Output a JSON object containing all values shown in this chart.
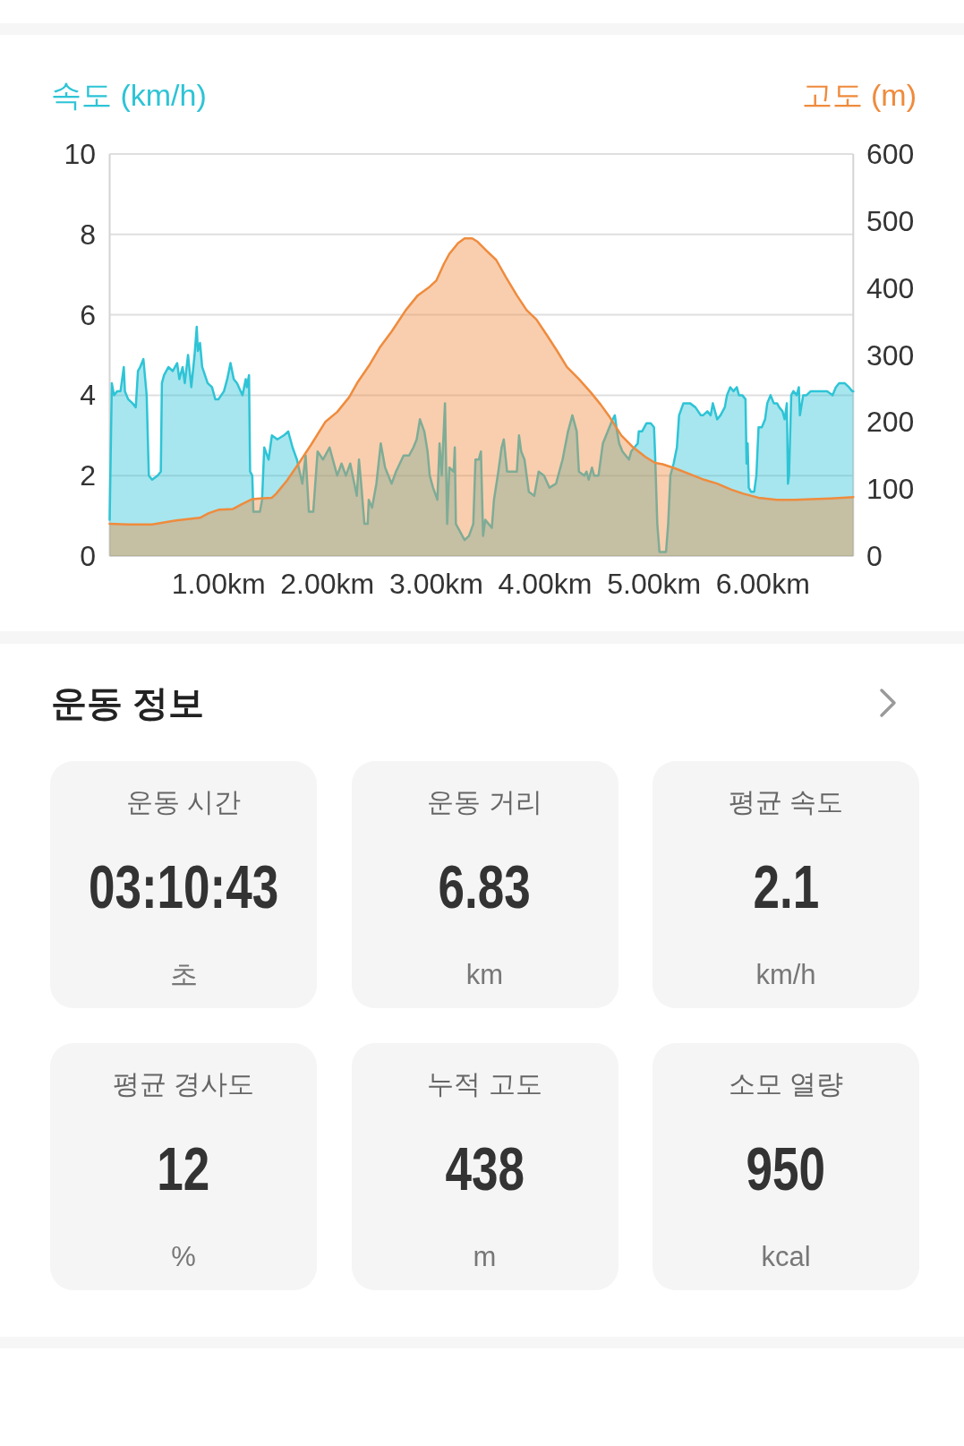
{
  "chart_data": [
    {
      "type": "area",
      "ylabel": "속도 (km/h)",
      "y2label": "고도 (m)",
      "xlim": [
        0,
        6.83
      ],
      "xticks": [
        {
          "value": 1,
          "label": "1.00km"
        },
        {
          "value": 2,
          "label": "2.00km"
        },
        {
          "value": 3,
          "label": "3.00km"
        },
        {
          "value": 4,
          "label": "4.00km"
        },
        {
          "value": 5,
          "label": "5.00km"
        },
        {
          "value": 6,
          "label": "6.00km"
        }
      ],
      "ylim": [
        0,
        10
      ],
      "yticks": [
        0,
        2,
        4,
        6,
        8,
        10
      ],
      "y2lim": [
        0,
        600
      ],
      "y2ticks": [
        0,
        100,
        200,
        300,
        400,
        500,
        600
      ],
      "grid": "y",
      "series": [
        {
          "color": "#2ec4d6",
          "x": [
            0,
            0.02,
            0.04,
            0.07,
            0.1,
            0.12,
            0.13,
            0.14,
            0.17,
            0.21,
            0.24,
            0.26,
            0.28,
            0.31,
            0.34,
            0.36,
            0.39,
            0.44,
            0.47,
            0.48,
            0.5,
            0.54,
            0.58,
            0.62,
            0.64,
            0.67,
            0.69,
            0.72,
            0.75,
            0.78,
            0.8,
            0.81,
            0.83,
            0.85,
            0.9,
            0.94,
            0.97,
            1.0,
            1.05,
            1.08,
            1.11,
            1.14,
            1.17,
            1.22,
            1.25,
            1.26,
            1.28,
            1.29,
            1.31,
            1.32,
            1.38,
            1.4,
            1.42,
            1.46,
            1.49,
            1.54,
            1.6,
            1.64,
            1.68,
            1.72,
            1.77,
            1.8,
            1.83,
            1.87,
            1.91,
            1.96,
            2.02,
            2.09,
            2.13,
            2.17,
            2.21,
            2.27,
            2.29,
            2.31,
            2.34,
            2.37,
            2.38,
            2.41,
            2.45,
            2.49,
            2.53,
            2.59,
            2.63,
            2.7,
            2.75,
            2.79,
            2.82,
            2.85,
            2.89,
            2.92,
            2.94,
            2.97,
            3.01,
            3.03,
            3.05,
            3.08,
            3.1,
            3.12,
            3.16,
            3.17,
            3.18,
            3.22,
            3.26,
            3.3,
            3.34,
            3.36,
            3.39,
            3.41,
            3.43,
            3.45,
            3.51,
            3.53,
            3.57,
            3.6,
            3.62,
            3.65,
            3.7,
            3.74,
            3.76,
            3.78,
            3.81,
            3.85,
            3.9,
            3.94,
            3.99,
            4.04,
            4.1,
            4.16,
            4.21,
            4.25,
            4.29,
            4.31,
            4.36,
            4.38,
            4.4,
            4.43,
            4.45,
            4.49,
            4.53,
            4.59,
            4.62,
            4.64,
            4.66,
            4.68,
            4.71,
            4.74,
            4.77,
            4.79,
            4.82,
            4.85,
            4.86,
            4.89,
            4.91,
            4.93,
            4.97,
            5.0,
            5.01,
            5.03,
            5.05,
            5.11,
            5.13,
            5.15,
            5.18,
            5.21,
            5.23,
            5.27,
            5.3,
            5.33,
            5.38,
            5.43,
            5.45,
            5.49,
            5.52,
            5.54,
            5.58,
            5.61,
            5.65,
            5.67,
            5.7,
            5.73,
            5.76,
            5.78,
            5.81,
            5.84,
            5.85,
            5.86,
            5.87,
            5.89,
            5.92,
            5.94,
            5.96,
            5.99,
            6.02,
            6.04,
            6.07,
            6.1,
            6.13,
            6.15,
            6.18,
            6.2,
            6.22,
            6.23,
            6.24,
            6.26,
            6.28,
            6.31,
            6.33,
            6.34,
            6.37,
            6.4,
            6.44,
            6.5,
            6.54,
            6.59,
            6.64,
            6.67,
            6.7,
            6.75,
            6.79,
            6.82,
            6.83
          ],
          "values": [
            0.9,
            4.3,
            4.0,
            4.1,
            4.1,
            4.5,
            4.7,
            4.1,
            3.9,
            3.8,
            3.7,
            4.6,
            4.7,
            4.9,
            4.0,
            2.0,
            1.9,
            2.0,
            2.1,
            4.3,
            4.5,
            4.7,
            4.6,
            4.8,
            4.4,
            4.7,
            4.3,
            5.0,
            4.2,
            5.0,
            5.7,
            5.1,
            5.3,
            4.7,
            4.3,
            4.2,
            3.9,
            3.9,
            4.1,
            4.4,
            4.8,
            4.4,
            4.3,
            4.0,
            4.4,
            4.2,
            4.5,
            2.1,
            2.0,
            1.1,
            1.1,
            1.4,
            2.7,
            2.4,
            3.0,
            2.9,
            3.0,
            3.1,
            2.7,
            2.4,
            1.8,
            2.5,
            1.1,
            1.1,
            2.6,
            2.4,
            2.7,
            2.0,
            2.3,
            2.0,
            2.3,
            1.5,
            2.4,
            1.8,
            0.8,
            0.8,
            1.4,
            1.2,
            1.8,
            2.8,
            2.2,
            1.8,
            2.1,
            2.5,
            2.5,
            2.7,
            2.9,
            3.4,
            3.1,
            2.6,
            2.0,
            1.7,
            1.4,
            2.8,
            2.0,
            3.8,
            0.8,
            2.2,
            2.1,
            2.7,
            0.8,
            0.6,
            0.4,
            0.5,
            0.8,
            2.4,
            2.4,
            2.6,
            0.5,
            0.9,
            0.7,
            1.4,
            2.1,
            2.7,
            2.9,
            2.1,
            2.1,
            2.1,
            3.0,
            2.6,
            2.4,
            1.6,
            1.5,
            2.1,
            2.0,
            1.7,
            1.8,
            2.4,
            3.1,
            3.5,
            3.1,
            2.1,
            2.0,
            2.1,
            1.9,
            2.2,
            2.0,
            2.0,
            2.8,
            3.2,
            3.4,
            3.5,
            3.1,
            2.8,
            2.6,
            2.5,
            2.4,
            2.6,
            2.7,
            2.8,
            3.1,
            3.1,
            3.2,
            3.3,
            3.3,
            3.2,
            2.5,
            0.8,
            0.1,
            0.1,
            0.8,
            2.0,
            2.3,
            2.7,
            3.5,
            3.8,
            3.8,
            3.8,
            3.7,
            3.5,
            3.5,
            3.6,
            3.5,
            3.8,
            3.4,
            3.5,
            3.7,
            4.0,
            4.2,
            4.1,
            4.2,
            4.0,
            4.0,
            3.9,
            2.3,
            2.8,
            1.7,
            1.6,
            1.6,
            2.0,
            3.2,
            3.2,
            3.4,
            3.8,
            4.0,
            3.8,
            3.8,
            3.7,
            3.6,
            3.4,
            3.8,
            1.8,
            2.0,
            4.0,
            4.1,
            4.0,
            4.2,
            3.5,
            4.0,
            4.0,
            4.1,
            4.1,
            4.1,
            4.1,
            4.0,
            4.2,
            4.3,
            4.3,
            4.2,
            4.1,
            4.1
          ]
        },
        {
          "color": "#ef8b3d",
          "axis": "y2",
          "x": [
            0,
            0.17,
            0.39,
            0.61,
            0.83,
            0.91,
            1.0,
            1.13,
            1.21,
            1.31,
            1.38,
            1.49,
            1.53,
            1.63,
            1.74,
            1.85,
            1.98,
            2.09,
            2.2,
            2.28,
            2.39,
            2.48,
            2.59,
            2.72,
            2.83,
            2.94,
            3.0,
            3.07,
            3.12,
            3.2,
            3.26,
            3.33,
            3.38,
            3.46,
            3.55,
            3.64,
            3.74,
            3.83,
            3.92,
            4.01,
            4.11,
            4.2,
            4.31,
            4.42,
            4.51,
            4.59,
            4.7,
            4.81,
            4.92,
            5.01,
            5.08,
            5.19,
            5.3,
            5.44,
            5.58,
            5.71,
            5.82,
            5.96,
            6.13,
            6.29,
            6.45,
            6.62,
            6.83
          ],
          "values": [
            48,
            47,
            47,
            53,
            57,
            64,
            69,
            70,
            77,
            85,
            86,
            87,
            93,
            113,
            139,
            166,
            200,
            215,
            237,
            260,
            286,
            311,
            335,
            367,
            389,
            402,
            411,
            436,
            451,
            467,
            474,
            474,
            469,
            456,
            442,
            416,
            389,
            367,
            353,
            331,
            306,
            282,
            264,
            244,
            226,
            208,
            180,
            162,
            148,
            139,
            137,
            131,
            124,
            115,
            108,
            99,
            93,
            87,
            84,
            84,
            85,
            86,
            88
          ]
        }
      ]
    },
    {
      "type": "other",
      "title": "운동 정보",
      "categories": [
        "운동 시간",
        "운동 거리",
        "평균 속도",
        "평균 경사도",
        "누적 고도",
        "소모 열량"
      ],
      "value_labels": [
        "03:10:43",
        "6.83",
        "2.1",
        "12",
        "438",
        "950"
      ],
      "annotations": [
        "초",
        "km",
        "km/h",
        "%",
        "m",
        "kcal"
      ]
    }
  ]
}
